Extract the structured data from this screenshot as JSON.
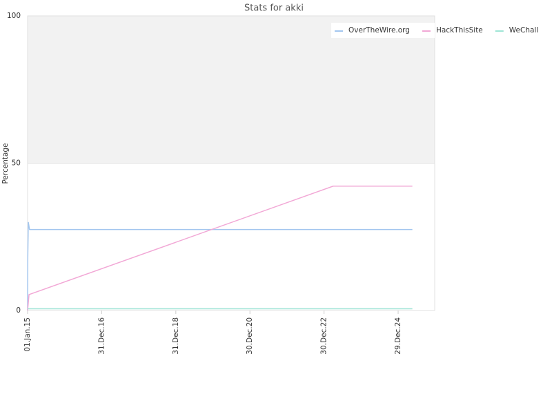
{
  "chart_data": {
    "type": "line",
    "title": "Stats for akki",
    "y_label": "Percentage",
    "ylim": [
      0,
      100
    ],
    "yticks": [
      0,
      50,
      100
    ],
    "xlim": [
      "2015-01-01",
      "2025-12-24"
    ],
    "xticks": [
      {
        "value": "2015-01-01",
        "label": "01.Jan.15"
      },
      {
        "value": "2016-12-31",
        "label": "31.Dec.16"
      },
      {
        "value": "2018-12-31",
        "label": "31.Dec.18"
      },
      {
        "value": "2020-12-30",
        "label": "30.Dec.20"
      },
      {
        "value": "2022-12-30",
        "label": "30.Dec.22"
      },
      {
        "value": "2024-12-29",
        "label": "29.Dec.24"
      }
    ],
    "legend": "top-right",
    "series": [
      {
        "name": "OverTheWire.org",
        "color": "#a3c6ef",
        "x": [
          "2015-01-01",
          "2015-01-03",
          "2015-01-08",
          "2015-01-20",
          "2025-05-18"
        ],
        "values": [
          0,
          18,
          30,
          27.5,
          27.5
        ]
      },
      {
        "name": "HackThisSite",
        "color": "#f2a8d6",
        "x": [
          "2015-01-01",
          "2015-01-15",
          "2023-03-30",
          "2025-05-18"
        ],
        "values": [
          0,
          5.4,
          42.2,
          42.2
        ]
      },
      {
        "name": "WeChall",
        "color": "#9fe5d6",
        "x": [
          "2015-01-01",
          "2025-05-18"
        ],
        "values": [
          0.6,
          0.6
        ]
      }
    ]
  }
}
